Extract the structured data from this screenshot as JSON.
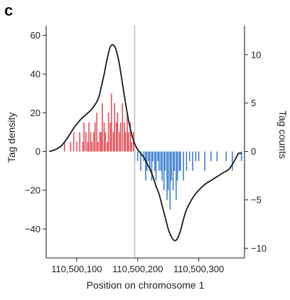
{
  "panel_label": "c",
  "chart_data": {
    "type": "line+bar",
    "xlabel": "Position on chromosome 1",
    "ylabel_left": "Tag density",
    "ylabel_right": "Tag counts",
    "xlim": [
      110500050,
      110500375
    ],
    "ylim_left": [
      -55,
      65
    ],
    "ylim_right": [
      -11,
      13
    ],
    "x_ticks": [
      110500100,
      110500200,
      110500300
    ],
    "x_tick_labels": [
      "110,500,100",
      "110,500,200",
      "110,500,300"
    ],
    "y_left_ticks": [
      -40,
      -20,
      0,
      20,
      40,
      60
    ],
    "y_left_tick_labels": [
      "−40",
      "−20",
      "0",
      "20",
      "40",
      "60"
    ],
    "y_right_ticks": [
      -10,
      -5,
      0,
      5,
      10
    ],
    "y_right_tick_labels": [
      "−10",
      "−5",
      "0",
      "5",
      "10"
    ],
    "vline_x": 110500195,
    "colors": {
      "positive": "#e8505b",
      "negative": "#3f7fce",
      "line": "#1a1a1a",
      "vline": "#bbbbbb"
    },
    "density_curve": {
      "x": [
        110500055,
        110500065,
        110500075,
        110500085,
        110500095,
        110500105,
        110500115,
        110500125,
        110500135,
        110500140,
        110500145,
        110500150,
        110500155,
        110500160,
        110500165,
        110500170,
        110500175,
        110500180,
        110500185,
        110500190,
        110500195,
        110500200,
        110500205,
        110500210,
        110500215,
        110500220,
        110500225,
        110500230,
        110500235,
        110500240,
        110500245,
        110500250,
        110500255,
        110500260,
        110500265,
        110500270,
        110500275,
        110500280,
        110500290,
        110500300,
        110500310,
        110500320,
        110500330,
        110500340,
        110500350,
        110500360,
        110500365,
        110500370
      ],
      "y": [
        0,
        1,
        3,
        7,
        12,
        16,
        19,
        22,
        27,
        33,
        40,
        48,
        54,
        55,
        52,
        45,
        35,
        25,
        16,
        9,
        4,
        1,
        -1,
        -3,
        -6,
        -9,
        -13,
        -18,
        -22,
        -28,
        -34,
        -40,
        -44,
        -46,
        -45,
        -41,
        -35,
        -30,
        -24,
        -20,
        -17,
        -15,
        -13,
        -11,
        -9,
        -4,
        -1,
        -1
      ]
    },
    "positive_bars": {
      "x": [
        110500080,
        110500090,
        110500095,
        110500100,
        110500105,
        110500110,
        110500112,
        110500115,
        110500118,
        110500120,
        110500123,
        110500125,
        110500128,
        110500130,
        110500133,
        110500135,
        110500138,
        110500140,
        110500142,
        110500145,
        110500147,
        110500150,
        110500152,
        110500155,
        110500157,
        110500160,
        110500162,
        110500165,
        110500167,
        110500170,
        110500172,
        110500175,
        110500178,
        110500180,
        110500183,
        110500185,
        110500188,
        110500190,
        110500193
      ],
      "y": [
        1,
        1,
        2,
        1,
        2,
        1,
        3,
        2,
        1,
        3,
        2,
        1,
        2,
        3,
        4,
        1,
        2,
        2,
        5,
        3,
        2,
        1,
        4,
        3,
        6,
        2,
        5,
        3,
        4,
        2,
        3,
        5,
        3,
        2,
        4,
        2,
        3,
        1,
        2
      ]
    },
    "negative_bars": {
      "x": [
        110500195,
        110500200,
        110500205,
        110500210,
        110500213,
        110500215,
        110500218,
        110500220,
        110500223,
        110500225,
        110500228,
        110500230,
        110500233,
        110500235,
        110500238,
        110500240,
        110500243,
        110500245,
        110500248,
        110500250,
        110500253,
        110500255,
        110500258,
        110500260,
        110500263,
        110500265,
        110500268,
        110500270,
        110500275,
        110500280,
        110500285,
        110500290,
        110500295,
        110500300,
        110500310,
        110500320,
        110500330,
        110500345,
        110500355,
        110500370
      ],
      "y": [
        -1,
        -1,
        -2,
        -1,
        -3,
        -2,
        -1,
        -2,
        -3,
        -1,
        -2,
        -3,
        -1,
        -2,
        -2,
        -3,
        -4,
        -2,
        -5,
        -4,
        -6,
        -3,
        -4,
        -2,
        -5,
        -3,
        -2,
        -2,
        -3,
        -2,
        -1,
        -2,
        -1,
        -1,
        -2,
        -1,
        -1,
        -1,
        -2,
        -1
      ]
    }
  }
}
